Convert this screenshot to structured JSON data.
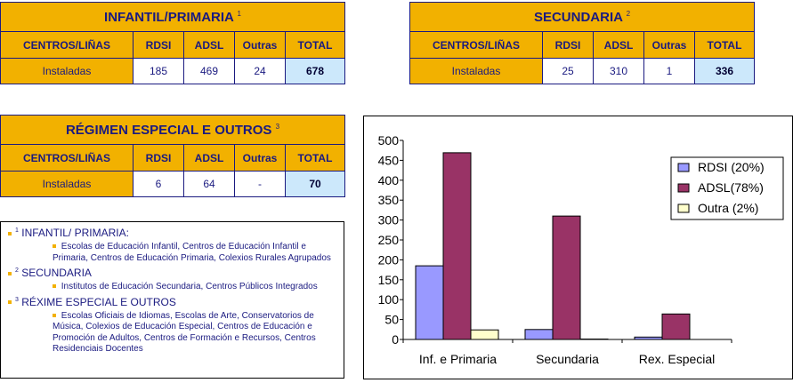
{
  "tables": [
    {
      "title": "INFANTIL/PRIMARIA",
      "sup": "1",
      "headers": [
        "CENTROS/LIÑAS",
        "RDSI",
        "ADSL",
        "Outras",
        "TOTAL"
      ],
      "row": [
        "Instaladas",
        "185",
        "469",
        "24",
        "678"
      ]
    },
    {
      "title": "SECUNDARIA",
      "sup": "2",
      "headers": [
        "CENTROS/LIÑAS",
        "RDSI",
        "ADSL",
        "Outras",
        "TOTAL"
      ],
      "row": [
        "Instaladas",
        "25",
        "310",
        "1",
        "336"
      ]
    },
    {
      "title": "RÉGIMEN ESPECIAL E OUTROS",
      "sup": "3",
      "headers": [
        "CENTROS/LIÑAS",
        "RDSI",
        "ADSL",
        "Outras",
        "TOTAL"
      ],
      "row": [
        "Instaladas",
        "6",
        "64",
        "-",
        "70"
      ]
    }
  ],
  "notes": [
    {
      "sup": "1",
      "title": "INFANTIL/ PRIMARIA:",
      "detail": "Escolas de Educación Infantil, Centros de Educación Infantil e Primaria,  Centros de Educación Primaria,  Colexios Rurales Agrupados"
    },
    {
      "sup": "2",
      "title": "SECUNDARIA",
      "detail": "Institutos de Educación Secundaria, Centros Públicos Integrados"
    },
    {
      "sup": "3",
      "title": "RÉXIME ESPECIAL E OUTROS",
      "detail": "Escolas Oficiais de Idiomas, Escolas de Arte, Conservatorios de Música, Colexios de Educación Especial, Centros de Educación e Promoción de Adultos, Centros de Formación e Recursos, Centros Residenciais Docentes"
    }
  ],
  "chart_data": {
    "type": "bar",
    "categories": [
      "Inf. e Primaria",
      "Secundaria",
      "Rex. Especial"
    ],
    "series": [
      {
        "name": "RDSI (20%)",
        "values": [
          185,
          25,
          6
        ],
        "color": "#9999ff"
      },
      {
        "name": "ADSL(78%)",
        "values": [
          469,
          310,
          64
        ],
        "color": "#993366"
      },
      {
        "name": "Outra (2%)",
        "values": [
          24,
          1,
          0
        ],
        "color": "#ffffcc"
      }
    ],
    "yticks": [
      0,
      50,
      100,
      150,
      200,
      250,
      300,
      350,
      400,
      450,
      500
    ],
    "ylim": [
      0,
      500
    ],
    "legend_position": "right-top",
    "grid": false,
    "title": "",
    "xlabel": "",
    "ylabel": ""
  }
}
